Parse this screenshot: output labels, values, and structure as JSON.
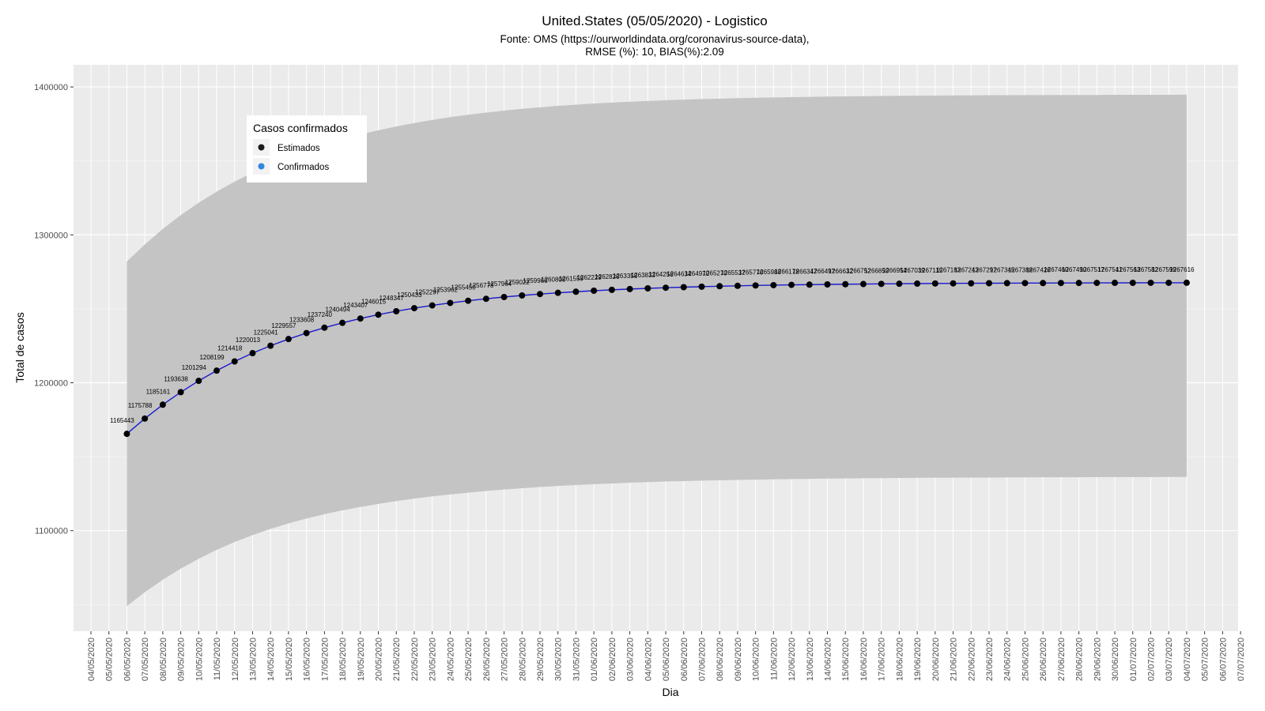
{
  "chart_data": {
    "type": "line",
    "title": "United.States (05/05/2020) - Logistico",
    "subtitle_line1": "Fonte: OMS (https://ourworldindata.org/coronavirus-source-data),",
    "subtitle_line2": "RMSE (%): 10, BIAS(%):2.09",
    "xlabel": "Dia",
    "ylabel": "Total de casos",
    "ylim": [
      1032000,
      1415000
    ],
    "yticks": [
      1100000,
      1200000,
      1300000,
      1400000
    ],
    "x_axis_dates": [
      "04/05/2020",
      "05/05/2020",
      "06/05/2020",
      "07/05/2020",
      "08/05/2020",
      "09/05/2020",
      "10/05/2020",
      "11/05/2020",
      "12/05/2020",
      "13/05/2020",
      "14/05/2020",
      "15/05/2020",
      "16/05/2020",
      "17/05/2020",
      "18/05/2020",
      "19/05/2020",
      "20/05/2020",
      "21/05/2020",
      "22/05/2020",
      "23/05/2020",
      "24/05/2020",
      "25/05/2020",
      "26/05/2020",
      "27/05/2020",
      "28/05/2020",
      "29/05/2020",
      "30/05/2020",
      "31/05/2020",
      "01/06/2020",
      "02/06/2020",
      "03/06/2020",
      "04/06/2020",
      "05/06/2020",
      "06/06/2020",
      "07/06/2020",
      "08/06/2020",
      "09/06/2020",
      "10/06/2020",
      "11/06/2020",
      "12/06/2020",
      "13/06/2020",
      "14/06/2020",
      "15/06/2020",
      "16/06/2020",
      "17/06/2020",
      "18/06/2020",
      "19/06/2020",
      "20/06/2020",
      "21/06/2020",
      "22/06/2020",
      "23/06/2020",
      "24/06/2020",
      "25/06/2020",
      "26/06/2020",
      "27/06/2020",
      "28/06/2020",
      "29/06/2020",
      "30/06/2020",
      "01/07/2020",
      "02/07/2020",
      "03/07/2020",
      "04/07/2020",
      "05/07/2020",
      "06/07/2020",
      "07/07/2020"
    ],
    "grid": true,
    "legend": {
      "title": "Casos confirmados",
      "position": "top-left",
      "entries": [
        {
          "label": "Estimados",
          "color": "#1a1a1a"
        },
        {
          "label": "Confirmados",
          "color": "#2e86de"
        }
      ]
    },
    "series": [
      {
        "name": "Estimados",
        "x_start": "06/05/2020",
        "x_end": "04/07/2020",
        "values": [
          1165443,
          1175788,
          1185161,
          1193638,
          1201294,
          1208199,
          1214418,
          1220013,
          1225041,
          1229557,
          1233608,
          1237240,
          1240494,
          1243407,
          1246015,
          1248347,
          1250433,
          1252297,
          1253962,
          1255450,
          1256778,
          1257964,
          1259022,
          1259966,
          1260808,
          1261559,
          1262229,
          1262826,
          1263358,
          1263833,
          1264256,
          1264634,
          1264970,
          1265270,
          1265537,
          1265776,
          1265988,
          1266178,
          1266347,
          1266497,
          1266632,
          1266752,
          1266859,
          1266954,
          1267039,
          1267115,
          1267183,
          1267243,
          1267297,
          1267345,
          1267388,
          1267426,
          1267460,
          1267490,
          1267517,
          1267541,
          1267563,
          1267582,
          1267599,
          1267616
        ],
        "labels_shown": [
          "1165443",
          "1175788",
          "1185161",
          "1193638",
          "1201294",
          "1208199",
          "1214418",
          "1220013",
          "1225041",
          "1229557",
          "1233608",
          "1237240",
          "1240494",
          "1243407",
          "1246015",
          "1248347",
          "1250433",
          "1252297",
          "1253962",
          "1255450",
          "1256778",
          "1257964",
          "1259022",
          "1259966",
          "1260808",
          "1261559",
          "1262229",
          "1262826",
          "1263358",
          "1263833",
          "1264256",
          "1264634",
          "1264970",
          "1265270",
          "1265537",
          "1265776",
          "1265988",
          "1266178",
          "1266347",
          "1266497",
          "1266632",
          "1266752",
          "1266859",
          "1266954",
          "1267039",
          "1267115",
          "1267183",
          "1267243",
          "1267297",
          "1267345",
          "1267388",
          "1267426",
          "1267460",
          "1267490",
          "1267517",
          "1267541",
          "1267563",
          "1267582",
          "1267599",
          "1267616"
        ],
        "line_color": "#1a1acc",
        "point_color": "#000000"
      }
    ],
    "confidence_band": {
      "lower": [
        1049000,
        1058400,
        1066800,
        1074300,
        1081000,
        1087000,
        1092300,
        1097000,
        1101200,
        1104900,
        1108200,
        1111100,
        1113700,
        1116000,
        1118100,
        1120000,
        1121700,
        1123200,
        1124500,
        1125700,
        1126800,
        1127800,
        1128700,
        1129500,
        1130200,
        1130800,
        1131400,
        1131900,
        1132400,
        1132800,
        1133200,
        1133500,
        1133800,
        1134100,
        1134300,
        1134500,
        1134700,
        1134900,
        1135000,
        1135200,
        1135300,
        1135400,
        1135500,
        1135600,
        1135700,
        1135800,
        1135800,
        1135900,
        1135900,
        1136000,
        1136000,
        1136100,
        1136100,
        1136100,
        1136200,
        1136200,
        1136200,
        1136200,
        1136300,
        1136300
      ],
      "upper": [
        1282000,
        1293500,
        1304000,
        1313300,
        1321700,
        1329200,
        1336000,
        1342100,
        1347600,
        1352600,
        1357000,
        1361000,
        1364600,
        1367800,
        1370700,
        1373300,
        1375600,
        1377700,
        1379600,
        1381200,
        1382700,
        1384000,
        1385200,
        1386200,
        1387200,
        1388000,
        1388800,
        1389400,
        1390000,
        1390500,
        1391000,
        1391400,
        1391800,
        1392100,
        1392400,
        1392700,
        1392900,
        1393100,
        1393300,
        1393500,
        1393600,
        1393800,
        1393900,
        1394000,
        1394100,
        1394200,
        1394300,
        1394300,
        1394400,
        1394400,
        1394500,
        1394500,
        1394600,
        1394600,
        1394600,
        1394700,
        1394700,
        1394700,
        1394700,
        1394800
      ],
      "color": "#c4c4c4"
    },
    "colors": {
      "panel_background": "#ebebeb",
      "grid_major": "#ffffff",
      "band": "#c4c4c4",
      "line": "#1a1acc"
    }
  }
}
